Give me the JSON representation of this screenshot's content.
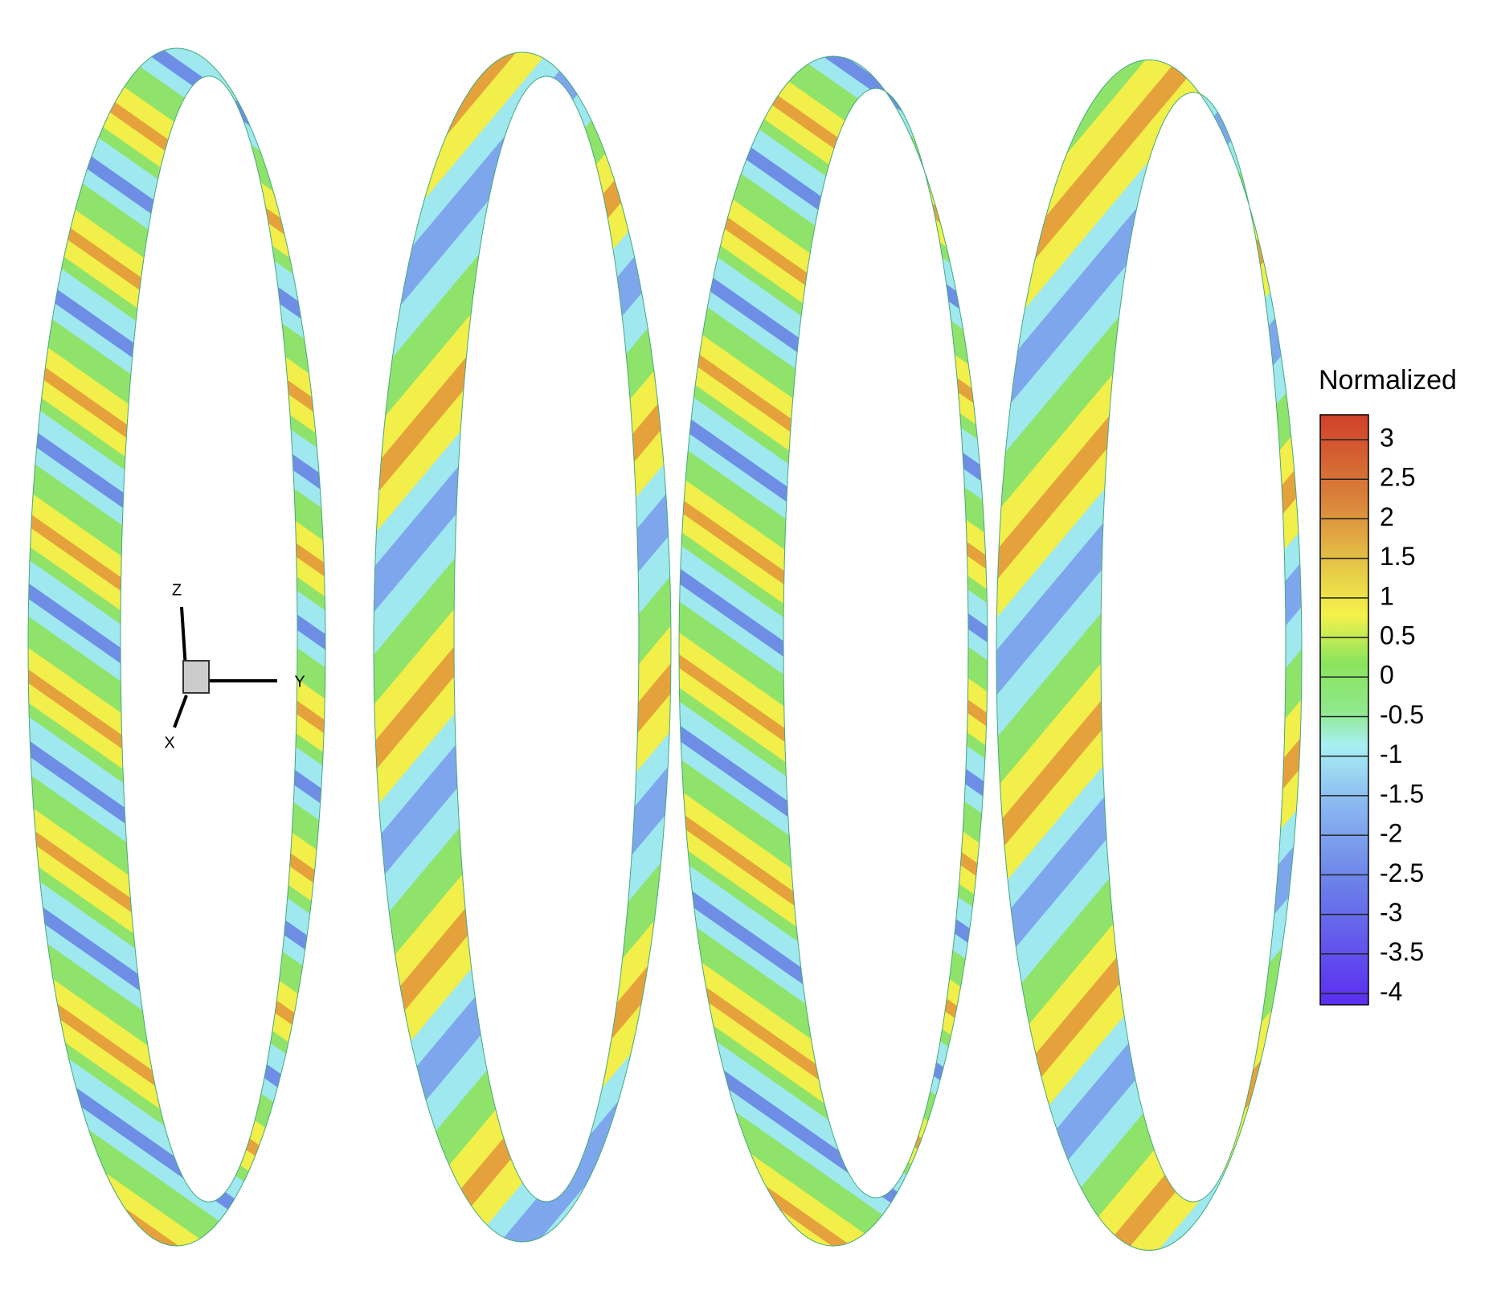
{
  "colorbar": {
    "title": "Normalized",
    "ticks": [
      3,
      2.5,
      2,
      1.5,
      1,
      0.5,
      0,
      -0.5,
      -1,
      -1.5,
      -2,
      -2.5,
      -3,
      -3.5,
      -4
    ]
  },
  "axes_triad": {
    "labels": [
      "Z",
      "Y",
      "X"
    ]
  }
}
